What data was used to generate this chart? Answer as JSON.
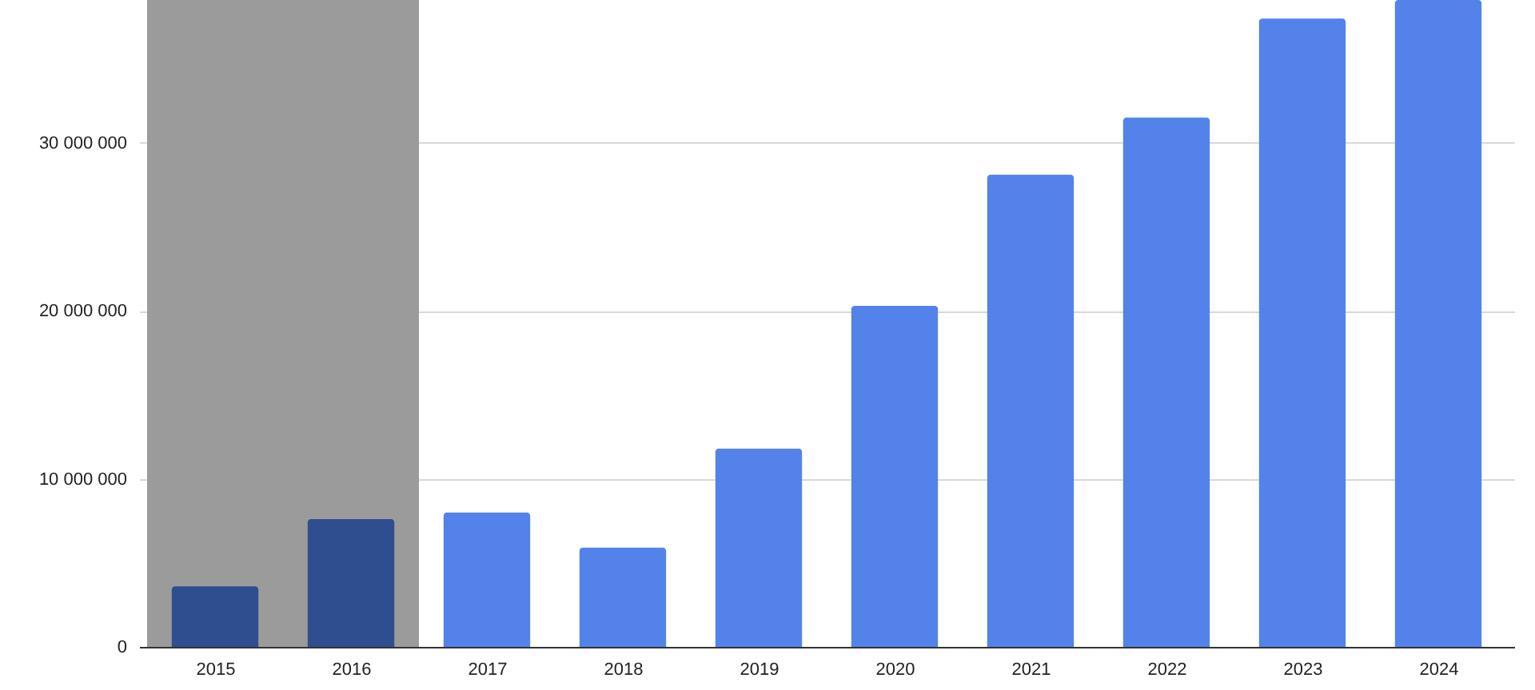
{
  "chart_data": {
    "type": "bar",
    "categories": [
      "2015",
      "2016",
      "2017",
      "2018",
      "2019",
      "2020",
      "2021",
      "2022",
      "2023",
      "2024"
    ],
    "values": [
      3600000,
      7600000,
      8000000,
      5900000,
      11800000,
      20300000,
      28100000,
      31500000,
      37400000,
      38500000
    ],
    "colors": [
      "#2f4e90",
      "#2f4e90",
      "#5383ea",
      "#5383ea",
      "#5383ea",
      "#5383ea",
      "#5383ea",
      "#5383ea",
      "#5383ea",
      "#5383ea"
    ],
    "ylim": [
      0,
      38500000
    ],
    "yticks": [
      {
        "value": 0,
        "label": "0"
      },
      {
        "value": 10000000,
        "label": "10 000 000"
      },
      {
        "value": 20000000,
        "label": "20 000 000"
      },
      {
        "value": 30000000,
        "label": "30 000 000"
      }
    ],
    "grid": "y",
    "bands": [
      {
        "axis": "x",
        "from": "2015",
        "to": "2016",
        "color": "#9b9b9b"
      }
    ]
  }
}
